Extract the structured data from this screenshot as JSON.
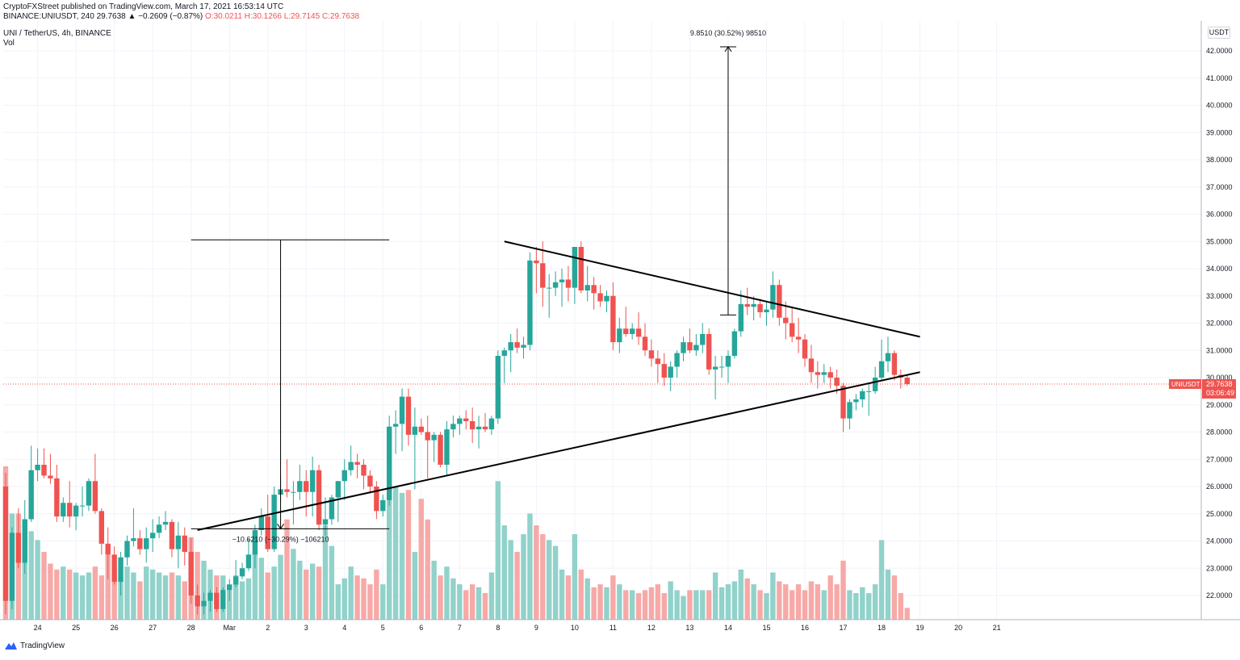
{
  "header": {
    "publisher": "CryptoFXStreet published on TradingView.com, March 17, 2021 16:53:14 UTC",
    "symbol_line_prefix": "BINANCE:UNIUSDT, 240 29.7638 ▲ −0.2609 (−0.87%)",
    "ohlc_line": "O:30.0211  H:30.1266  L:29.7145  C:29.7638",
    "pair_title": "UNI / TetherUS, 4h, BINANCE",
    "volume_label": "Vol"
  },
  "currency_button": "USDT",
  "branding": {
    "logo_text": "TradingView",
    "logo_icon": "tradingview-cloud-icon"
  },
  "colors": {
    "up": "#26a69a",
    "down": "#ef5350",
    "vol_up": "#91d2ca",
    "vol_down": "#f7a9a7",
    "grid": "#f0f3fa",
    "axis_text": "#131722",
    "line": "#000000"
  },
  "chart_data": {
    "type": "candlestick",
    "symbol": "UNIUSDT",
    "timeframe": "4h",
    "exchange": "BINANCE",
    "ylim": [
      21.2,
      42.5
    ],
    "y_ticks": [
      "42.0000",
      "41.0000",
      "40.0000",
      "39.0000",
      "38.0000",
      "37.0000",
      "36.0000",
      "35.0000",
      "34.0000",
      "33.0000",
      "32.0000",
      "31.0000",
      "30.0000",
      "29.0000",
      "28.0000",
      "27.0000",
      "26.0000",
      "25.0000",
      "24.0000",
      "23.0000",
      "22.0000"
    ],
    "x_ticks": [
      "24",
      "25",
      "26",
      "27",
      "28",
      "Mar",
      "2",
      "3",
      "4",
      "5",
      "6",
      "7",
      "8",
      "9",
      "10",
      "11",
      "12",
      "13",
      "14",
      "15",
      "16",
      "17",
      "18",
      "19",
      "20",
      "21"
    ],
    "last_price": {
      "symbol_label": "UNIUSDT",
      "price": "29.7638",
      "countdown": "03:06:49"
    },
    "candles": [
      {
        "o": 26.0,
        "h": 26.5,
        "l": 21.3,
        "c": 21.8,
        "v": 0.52
      },
      {
        "o": 21.8,
        "h": 24.5,
        "l": 21.5,
        "c": 24.3,
        "v": 0.36
      },
      {
        "o": 24.3,
        "h": 25.2,
        "l": 23.0,
        "c": 23.2,
        "v": 0.36
      },
      {
        "o": 23.2,
        "h": 25.5,
        "l": 22.8,
        "c": 24.8,
        "v": 0.34
      },
      {
        "o": 24.8,
        "h": 27.5,
        "l": 24.7,
        "c": 26.6,
        "v": 0.3
      },
      {
        "o": 26.6,
        "h": 27.4,
        "l": 26.2,
        "c": 26.8,
        "v": 0.27
      },
      {
        "o": 26.8,
        "h": 27.4,
        "l": 26.3,
        "c": 26.4,
        "v": 0.23
      },
      {
        "o": 26.4,
        "h": 27.2,
        "l": 26.1,
        "c": 26.3,
        "v": 0.19
      },
      {
        "o": 26.3,
        "h": 26.8,
        "l": 24.7,
        "c": 24.9,
        "v": 0.17
      },
      {
        "o": 24.9,
        "h": 25.6,
        "l": 24.7,
        "c": 25.4,
        "v": 0.18
      },
      {
        "o": 25.4,
        "h": 26.2,
        "l": 24.5,
        "c": 24.9,
        "v": 0.17
      },
      {
        "o": 24.9,
        "h": 25.4,
        "l": 24.4,
        "c": 25.3,
        "v": 0.16
      },
      {
        "o": 25.3,
        "h": 26.0,
        "l": 24.9,
        "c": 25.3,
        "v": 0.15
      },
      {
        "o": 25.3,
        "h": 26.3,
        "l": 25.1,
        "c": 26.2,
        "v": 0.16
      },
      {
        "o": 26.2,
        "h": 27.2,
        "l": 25.0,
        "c": 25.1,
        "v": 0.18
      },
      {
        "o": 25.1,
        "h": 25.2,
        "l": 23.5,
        "c": 23.9,
        "v": 0.15
      },
      {
        "o": 23.9,
        "h": 24.5,
        "l": 22.6,
        "c": 23.5,
        "v": 0.22
      },
      {
        "o": 23.5,
        "h": 23.8,
        "l": 22.4,
        "c": 22.5,
        "v": 0.16
      },
      {
        "o": 22.5,
        "h": 23.6,
        "l": 22.0,
        "c": 23.4,
        "v": 0.14
      },
      {
        "o": 23.4,
        "h": 24.2,
        "l": 23.1,
        "c": 24.0,
        "v": 0.18
      },
      {
        "o": 24.0,
        "h": 25.2,
        "l": 23.8,
        "c": 24.1,
        "v": 0.16
      },
      {
        "o": 24.1,
        "h": 24.4,
        "l": 23.5,
        "c": 23.7,
        "v": 0.13
      },
      {
        "o": 23.7,
        "h": 24.5,
        "l": 23.2,
        "c": 24.1,
        "v": 0.18
      },
      {
        "o": 24.1,
        "h": 24.8,
        "l": 23.6,
        "c": 24.3,
        "v": 0.17
      },
      {
        "o": 24.3,
        "h": 24.9,
        "l": 24.1,
        "c": 24.6,
        "v": 0.16
      },
      {
        "o": 24.6,
        "h": 25.1,
        "l": 24.4,
        "c": 24.7,
        "v": 0.15
      },
      {
        "o": 24.7,
        "h": 24.8,
        "l": 23.4,
        "c": 23.7,
        "v": 0.16
      },
      {
        "o": 23.7,
        "h": 24.7,
        "l": 23.0,
        "c": 24.2,
        "v": 0.15
      },
      {
        "o": 24.2,
        "h": 24.5,
        "l": 23.1,
        "c": 23.6,
        "v": 0.13
      },
      {
        "o": 23.6,
        "h": 24.1,
        "l": 21.7,
        "c": 22.0,
        "v": 0.28
      },
      {
        "o": 22.0,
        "h": 22.4,
        "l": 21.3,
        "c": 21.6,
        "v": 0.23
      },
      {
        "o": 21.6,
        "h": 22.1,
        "l": 21.3,
        "c": 21.8,
        "v": 0.2
      },
      {
        "o": 21.8,
        "h": 22.2,
        "l": 21.4,
        "c": 22.1,
        "v": 0.17
      },
      {
        "o": 22.1,
        "h": 22.3,
        "l": 21.4,
        "c": 21.5,
        "v": 0.15
      },
      {
        "o": 21.5,
        "h": 22.3,
        "l": 21.4,
        "c": 22.2,
        "v": 0.15
      },
      {
        "o": 22.2,
        "h": 22.6,
        "l": 21.8,
        "c": 22.4,
        "v": 0.12
      },
      {
        "o": 22.4,
        "h": 23.3,
        "l": 22.3,
        "c": 22.7,
        "v": 0.15
      },
      {
        "o": 22.7,
        "h": 23.2,
        "l": 22.6,
        "c": 23.0,
        "v": 0.13
      },
      {
        "o": 23.0,
        "h": 24.1,
        "l": 22.9,
        "c": 23.5,
        "v": 0.14
      },
      {
        "o": 23.5,
        "h": 24.6,
        "l": 23.0,
        "c": 24.4,
        "v": 0.23
      },
      {
        "o": 24.4,
        "h": 25.2,
        "l": 24.2,
        "c": 24.9,
        "v": 0.21
      },
      {
        "o": 24.9,
        "h": 25.7,
        "l": 23.6,
        "c": 23.7,
        "v": 0.16
      },
      {
        "o": 23.7,
        "h": 26.0,
        "l": 23.6,
        "c": 25.7,
        "v": 0.18
      },
      {
        "o": 25.7,
        "h": 26.4,
        "l": 25.4,
        "c": 25.9,
        "v": 0.22
      },
      {
        "o": 25.9,
        "h": 27.0,
        "l": 25.6,
        "c": 25.8,
        "v": 0.34
      },
      {
        "o": 25.8,
        "h": 26.2,
        "l": 24.6,
        "c": 25.8,
        "v": 0.24
      },
      {
        "o": 25.8,
        "h": 26.8,
        "l": 25.5,
        "c": 26.2,
        "v": 0.2
      },
      {
        "o": 26.2,
        "h": 26.6,
        "l": 24.9,
        "c": 25.8,
        "v": 0.17
      },
      {
        "o": 25.8,
        "h": 27.1,
        "l": 24.9,
        "c": 26.6,
        "v": 0.19
      },
      {
        "o": 26.6,
        "h": 26.8,
        "l": 24.4,
        "c": 24.6,
        "v": 0.18
      },
      {
        "o": 24.6,
        "h": 25.6,
        "l": 24.2,
        "c": 24.8,
        "v": 0.32
      },
      {
        "o": 24.8,
        "h": 25.7,
        "l": 24.6,
        "c": 25.6,
        "v": 0.25
      },
      {
        "o": 25.6,
        "h": 26.2,
        "l": 24.7,
        "c": 26.2,
        "v": 0.12
      },
      {
        "o": 26.2,
        "h": 27.0,
        "l": 25.5,
        "c": 26.6,
        "v": 0.14
      },
      {
        "o": 26.6,
        "h": 27.5,
        "l": 26.4,
        "c": 26.9,
        "v": 0.18
      },
      {
        "o": 26.9,
        "h": 27.2,
        "l": 26.3,
        "c": 26.8,
        "v": 0.15
      },
      {
        "o": 26.8,
        "h": 27.0,
        "l": 25.9,
        "c": 26.4,
        "v": 0.14
      },
      {
        "o": 26.4,
        "h": 26.6,
        "l": 25.8,
        "c": 26.0,
        "v": 0.12
      },
      {
        "o": 26.0,
        "h": 26.2,
        "l": 24.8,
        "c": 25.1,
        "v": 0.17
      },
      {
        "o": 25.1,
        "h": 25.7,
        "l": 24.9,
        "c": 25.5,
        "v": 0.12
      },
      {
        "o": 25.5,
        "h": 28.6,
        "l": 25.3,
        "c": 28.2,
        "v": 0.47
      },
      {
        "o": 28.2,
        "h": 28.8,
        "l": 27.2,
        "c": 28.3,
        "v": 0.45
      },
      {
        "o": 28.3,
        "h": 29.6,
        "l": 27.3,
        "c": 29.3,
        "v": 0.43
      },
      {
        "o": 29.3,
        "h": 29.6,
        "l": 27.5,
        "c": 27.9,
        "v": 0.44
      },
      {
        "o": 27.9,
        "h": 28.9,
        "l": 25.9,
        "c": 28.2,
        "v": 0.23
      },
      {
        "o": 28.2,
        "h": 28.5,
        "l": 27.9,
        "c": 28.0,
        "v": 0.41
      },
      {
        "o": 28.0,
        "h": 28.6,
        "l": 26.3,
        "c": 27.7,
        "v": 0.34
      },
      {
        "o": 27.7,
        "h": 28.0,
        "l": 26.9,
        "c": 27.9,
        "v": 0.2
      },
      {
        "o": 27.9,
        "h": 28.0,
        "l": 26.7,
        "c": 26.8,
        "v": 0.15
      },
      {
        "o": 26.8,
        "h": 28.4,
        "l": 26.4,
        "c": 28.1,
        "v": 0.18
      },
      {
        "o": 28.1,
        "h": 28.6,
        "l": 27.8,
        "c": 28.3,
        "v": 0.14
      },
      {
        "o": 28.3,
        "h": 28.6,
        "l": 27.9,
        "c": 28.5,
        "v": 0.12
      },
      {
        "o": 28.5,
        "h": 28.8,
        "l": 28.1,
        "c": 28.4,
        "v": 0.1
      },
      {
        "o": 28.4,
        "h": 28.9,
        "l": 27.6,
        "c": 28.1,
        "v": 0.12
      },
      {
        "o": 28.1,
        "h": 28.6,
        "l": 27.4,
        "c": 28.2,
        "v": 0.11
      },
      {
        "o": 28.2,
        "h": 28.7,
        "l": 28.0,
        "c": 28.1,
        "v": 0.09
      },
      {
        "o": 28.1,
        "h": 28.6,
        "l": 27.9,
        "c": 28.5,
        "v": 0.16
      },
      {
        "o": 28.5,
        "h": 31.0,
        "l": 28.3,
        "c": 30.8,
        "v": 0.47
      },
      {
        "o": 30.8,
        "h": 31.1,
        "l": 29.8,
        "c": 31.0,
        "v": 0.32
      },
      {
        "o": 31.0,
        "h": 31.6,
        "l": 30.2,
        "c": 31.3,
        "v": 0.27
      },
      {
        "o": 31.3,
        "h": 31.8,
        "l": 30.9,
        "c": 31.1,
        "v": 0.23
      },
      {
        "o": 31.1,
        "h": 31.5,
        "l": 30.7,
        "c": 31.2,
        "v": 0.29
      },
      {
        "o": 31.2,
        "h": 34.6,
        "l": 31.0,
        "c": 34.3,
        "v": 0.36
      },
      {
        "o": 34.3,
        "h": 34.8,
        "l": 33.1,
        "c": 34.2,
        "v": 0.32
      },
      {
        "o": 34.2,
        "h": 35.0,
        "l": 32.6,
        "c": 33.3,
        "v": 0.29
      },
      {
        "o": 33.3,
        "h": 33.8,
        "l": 32.2,
        "c": 33.3,
        "v": 0.27
      },
      {
        "o": 33.3,
        "h": 33.9,
        "l": 33.0,
        "c": 33.5,
        "v": 0.25
      },
      {
        "o": 33.5,
        "h": 34.0,
        "l": 32.6,
        "c": 33.6,
        "v": 0.17
      },
      {
        "o": 33.6,
        "h": 34.1,
        "l": 32.8,
        "c": 33.3,
        "v": 0.15
      },
      {
        "o": 33.3,
        "h": 34.8,
        "l": 32.7,
        "c": 34.8,
        "v": 0.29
      },
      {
        "o": 34.8,
        "h": 35.0,
        "l": 33.1,
        "c": 33.2,
        "v": 0.17
      },
      {
        "o": 33.2,
        "h": 34.1,
        "l": 32.8,
        "c": 33.4,
        "v": 0.14
      },
      {
        "o": 33.4,
        "h": 33.7,
        "l": 32.5,
        "c": 33.1,
        "v": 0.11
      },
      {
        "o": 33.1,
        "h": 33.4,
        "l": 32.6,
        "c": 32.8,
        "v": 0.12
      },
      {
        "o": 32.8,
        "h": 33.2,
        "l": 32.4,
        "c": 33.0,
        "v": 0.11
      },
      {
        "o": 33.0,
        "h": 33.5,
        "l": 31.0,
        "c": 31.3,
        "v": 0.15
      },
      {
        "o": 31.3,
        "h": 32.2,
        "l": 30.9,
        "c": 31.8,
        "v": 0.12
      },
      {
        "o": 31.8,
        "h": 32.6,
        "l": 31.5,
        "c": 31.6,
        "v": 0.1
      },
      {
        "o": 31.6,
        "h": 32.0,
        "l": 31.4,
        "c": 31.8,
        "v": 0.1
      },
      {
        "o": 31.8,
        "h": 32.4,
        "l": 31.2,
        "c": 31.5,
        "v": 0.09
      },
      {
        "o": 31.5,
        "h": 32.0,
        "l": 30.8,
        "c": 31.0,
        "v": 0.1
      },
      {
        "o": 31.0,
        "h": 31.4,
        "l": 30.4,
        "c": 30.7,
        "v": 0.11
      },
      {
        "o": 30.7,
        "h": 31.0,
        "l": 29.8,
        "c": 30.5,
        "v": 0.12
      },
      {
        "o": 30.5,
        "h": 30.9,
        "l": 29.7,
        "c": 30.0,
        "v": 0.09
      },
      {
        "o": 30.0,
        "h": 30.6,
        "l": 29.5,
        "c": 30.4,
        "v": 0.13
      },
      {
        "o": 30.4,
        "h": 31.0,
        "l": 30.0,
        "c": 30.9,
        "v": 0.1
      },
      {
        "o": 30.9,
        "h": 31.5,
        "l": 30.6,
        "c": 31.3,
        "v": 0.08
      },
      {
        "o": 31.3,
        "h": 31.8,
        "l": 30.9,
        "c": 31.0,
        "v": 0.1
      },
      {
        "o": 31.0,
        "h": 31.6,
        "l": 30.8,
        "c": 31.2,
        "v": 0.1
      },
      {
        "o": 31.2,
        "h": 32.0,
        "l": 30.9,
        "c": 31.6,
        "v": 0.1
      },
      {
        "o": 31.6,
        "h": 31.8,
        "l": 30.1,
        "c": 30.3,
        "v": 0.1
      },
      {
        "o": 30.3,
        "h": 30.8,
        "l": 29.2,
        "c": 30.4,
        "v": 0.16
      },
      {
        "o": 30.4,
        "h": 30.8,
        "l": 30.0,
        "c": 30.4,
        "v": 0.11
      },
      {
        "o": 30.4,
        "h": 31.0,
        "l": 29.8,
        "c": 30.8,
        "v": 0.12
      },
      {
        "o": 30.8,
        "h": 31.8,
        "l": 30.7,
        "c": 31.7,
        "v": 0.13
      },
      {
        "o": 31.7,
        "h": 33.2,
        "l": 31.5,
        "c": 32.7,
        "v": 0.17
      },
      {
        "o": 32.7,
        "h": 33.3,
        "l": 32.3,
        "c": 32.6,
        "v": 0.14
      },
      {
        "o": 32.6,
        "h": 33.0,
        "l": 32.1,
        "c": 32.7,
        "v": 0.12
      },
      {
        "o": 32.7,
        "h": 32.9,
        "l": 32.2,
        "c": 32.4,
        "v": 0.1
      },
      {
        "o": 32.4,
        "h": 32.8,
        "l": 31.9,
        "c": 32.5,
        "v": 0.09
      },
      {
        "o": 32.5,
        "h": 33.9,
        "l": 32.2,
        "c": 33.4,
        "v": 0.16
      },
      {
        "o": 33.4,
        "h": 33.6,
        "l": 31.9,
        "c": 32.2,
        "v": 0.13
      },
      {
        "o": 32.2,
        "h": 32.8,
        "l": 31.4,
        "c": 32.0,
        "v": 0.12
      },
      {
        "o": 32.0,
        "h": 32.6,
        "l": 31.3,
        "c": 31.5,
        "v": 0.1
      },
      {
        "o": 31.5,
        "h": 32.2,
        "l": 30.9,
        "c": 31.4,
        "v": 0.12
      },
      {
        "o": 31.4,
        "h": 31.6,
        "l": 30.4,
        "c": 30.7,
        "v": 0.1
      },
      {
        "o": 30.7,
        "h": 31.2,
        "l": 29.8,
        "c": 30.2,
        "v": 0.13
      },
      {
        "o": 30.2,
        "h": 30.6,
        "l": 29.6,
        "c": 30.1,
        "v": 0.12
      },
      {
        "o": 30.1,
        "h": 30.5,
        "l": 29.8,
        "c": 30.2,
        "v": 0.1
      },
      {
        "o": 30.2,
        "h": 30.4,
        "l": 29.6,
        "c": 30.0,
        "v": 0.15
      },
      {
        "o": 30.0,
        "h": 30.3,
        "l": 29.4,
        "c": 29.7,
        "v": 0.12
      },
      {
        "o": 29.7,
        "h": 29.8,
        "l": 28.0,
        "c": 28.5,
        "v": 0.2
      },
      {
        "o": 28.5,
        "h": 29.2,
        "l": 28.1,
        "c": 29.1,
        "v": 0.1
      },
      {
        "o": 29.1,
        "h": 29.4,
        "l": 28.8,
        "c": 29.2,
        "v": 0.09
      },
      {
        "o": 29.2,
        "h": 29.6,
        "l": 28.9,
        "c": 29.5,
        "v": 0.11
      },
      {
        "o": 29.5,
        "h": 29.8,
        "l": 28.6,
        "c": 29.5,
        "v": 0.09
      },
      {
        "o": 29.5,
        "h": 30.4,
        "l": 29.4,
        "c": 30.0,
        "v": 0.12
      },
      {
        "o": 30.0,
        "h": 31.4,
        "l": 29.9,
        "c": 30.6,
        "v": 0.27
      },
      {
        "o": 30.6,
        "h": 31.5,
        "l": 30.2,
        "c": 30.9,
        "v": 0.17
      },
      {
        "o": 30.9,
        "h": 31.0,
        "l": 29.9,
        "c": 30.1,
        "v": 0.15
      },
      {
        "o": 30.1,
        "h": 30.3,
        "l": 29.6,
        "c": 30.0,
        "v": 0.09
      },
      {
        "o": 30.0,
        "h": 30.1,
        "l": 29.7,
        "c": 29.76,
        "v": 0.04
      }
    ],
    "annotations": {
      "triangle_upper": {
        "from": [
          78,
          35.0
        ],
        "to": [
          143,
          31.5
        ]
      },
      "triangle_lower": {
        "from": [
          30,
          24.4
        ],
        "to": [
          143,
          30.2
        ]
      },
      "pole_top_line": {
        "from": [
          29,
          35.06
        ],
        "to": [
          60,
          35.06
        ]
      },
      "pole_bottom_line": {
        "from": [
          29,
          24.45
        ],
        "to": [
          60,
          24.45
        ]
      },
      "pole_measure": {
        "x": 43,
        "from": 35.06,
        "to": 24.45,
        "label": "−10.6210 (−30.29%) −106210"
      },
      "target_measure": {
        "x": 113,
        "from": 32.3,
        "to": 42.15,
        "label": "9.8510 (30.52%) 98510"
      }
    }
  }
}
